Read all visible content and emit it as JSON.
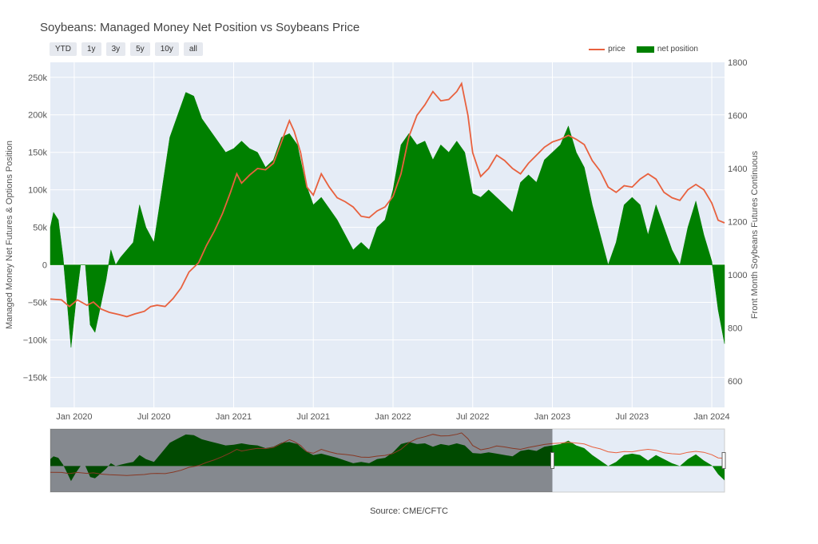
{
  "chart_data": {
    "type": "area+line",
    "title": "Soybeans: Managed Money Net Position vs Soybeans Price",
    "source": "Source: CME/CFTC",
    "range_buttons": [
      "YTD",
      "1y",
      "3y",
      "5y",
      "10y",
      "all"
    ],
    "y_left_label": "Managed Money Net Futures & Options Position",
    "y_right_label": "Front Month Soybeans Futures Continuous",
    "y_left_ticks": [
      "250k",
      "200k",
      "150k",
      "100k",
      "50k",
      "0",
      "−50k",
      "−100k",
      "−150k"
    ],
    "y_left_tick_values": [
      250000,
      200000,
      150000,
      100000,
      50000,
      0,
      -50000,
      -100000,
      -150000
    ],
    "y_left_range": [
      -190000,
      270000
    ],
    "y_right_ticks": [
      "1800",
      "1600",
      "1400",
      "1200",
      "1000",
      "800",
      "600"
    ],
    "y_right_tick_values": [
      1800,
      1600,
      1400,
      1200,
      1000,
      800,
      600
    ],
    "y_right_range": [
      500,
      1800
    ],
    "x_ticks": [
      "Jan 2020",
      "Jul 2020",
      "Jan 2021",
      "Jul 2021",
      "Jan 2022",
      "Jul 2022",
      "Jan 2023",
      "Jul 2023",
      "Jan 2024"
    ],
    "x_tick_values": [
      2020.0,
      2020.5,
      2021.0,
      2021.5,
      2022.0,
      2022.5,
      2023.0,
      2023.5,
      2024.0
    ],
    "x_range": [
      2019.85,
      2024.08
    ],
    "colors": {
      "price": "#e8613e",
      "net_position": "#008000",
      "plot_bg": "#e5ecf6"
    },
    "series": [
      {
        "name": "price",
        "type": "line",
        "axis": "right",
        "points": [
          [
            2019.85,
            908
          ],
          [
            2019.92,
            905
          ],
          [
            2019.97,
            880
          ],
          [
            2020.02,
            905
          ],
          [
            2020.08,
            885
          ],
          [
            2020.12,
            897
          ],
          [
            2020.17,
            870
          ],
          [
            2020.22,
            858
          ],
          [
            2020.28,
            850
          ],
          [
            2020.33,
            842
          ],
          [
            2020.38,
            852
          ],
          [
            2020.44,
            862
          ],
          [
            2020.48,
            880
          ],
          [
            2020.52,
            885
          ],
          [
            2020.57,
            880
          ],
          [
            2020.62,
            910
          ],
          [
            2020.67,
            950
          ],
          [
            2020.72,
            1010
          ],
          [
            2020.78,
            1045
          ],
          [
            2020.83,
            1110
          ],
          [
            2020.88,
            1165
          ],
          [
            2020.93,
            1230
          ],
          [
            2020.98,
            1310
          ],
          [
            2021.02,
            1380
          ],
          [
            2021.05,
            1345
          ],
          [
            2021.1,
            1375
          ],
          [
            2021.15,
            1400
          ],
          [
            2021.2,
            1395
          ],
          [
            2021.25,
            1420
          ],
          [
            2021.3,
            1500
          ],
          [
            2021.35,
            1580
          ],
          [
            2021.38,
            1540
          ],
          [
            2021.42,
            1460
          ],
          [
            2021.46,
            1330
          ],
          [
            2021.5,
            1300
          ],
          [
            2021.55,
            1380
          ],
          [
            2021.6,
            1330
          ],
          [
            2021.65,
            1290
          ],
          [
            2021.7,
            1275
          ],
          [
            2021.75,
            1255
          ],
          [
            2021.8,
            1220
          ],
          [
            2021.85,
            1215
          ],
          [
            2021.9,
            1240
          ],
          [
            2021.95,
            1255
          ],
          [
            2022.0,
            1295
          ],
          [
            2022.05,
            1380
          ],
          [
            2022.1,
            1520
          ],
          [
            2022.15,
            1600
          ],
          [
            2022.2,
            1640
          ],
          [
            2022.25,
            1690
          ],
          [
            2022.3,
            1655
          ],
          [
            2022.35,
            1660
          ],
          [
            2022.4,
            1690
          ],
          [
            2022.43,
            1720
          ],
          [
            2022.47,
            1600
          ],
          [
            2022.5,
            1460
          ],
          [
            2022.55,
            1370
          ],
          [
            2022.6,
            1400
          ],
          [
            2022.65,
            1450
          ],
          [
            2022.7,
            1430
          ],
          [
            2022.75,
            1400
          ],
          [
            2022.8,
            1380
          ],
          [
            2022.85,
            1420
          ],
          [
            2022.9,
            1450
          ],
          [
            2022.95,
            1480
          ],
          [
            2023.0,
            1500
          ],
          [
            2023.05,
            1510
          ],
          [
            2023.1,
            1525
          ],
          [
            2023.15,
            1510
          ],
          [
            2023.2,
            1490
          ],
          [
            2023.25,
            1430
          ],
          [
            2023.3,
            1390
          ],
          [
            2023.35,
            1330
          ],
          [
            2023.4,
            1310
          ],
          [
            2023.45,
            1335
          ],
          [
            2023.5,
            1330
          ],
          [
            2023.55,
            1360
          ],
          [
            2023.6,
            1380
          ],
          [
            2023.65,
            1360
          ],
          [
            2023.7,
            1310
          ],
          [
            2023.75,
            1290
          ],
          [
            2023.8,
            1280
          ],
          [
            2023.85,
            1320
          ],
          [
            2023.9,
            1340
          ],
          [
            2023.95,
            1320
          ],
          [
            2024.0,
            1270
          ],
          [
            2024.04,
            1205
          ],
          [
            2024.08,
            1195
          ]
        ]
      },
      {
        "name": "net position",
        "type": "area",
        "axis": "left",
        "points": [
          [
            2019.85,
            50000
          ],
          [
            2019.87,
            70000
          ],
          [
            2019.9,
            60000
          ],
          [
            2019.93,
            10000
          ],
          [
            2019.96,
            -60000
          ],
          [
            2019.98,
            -110000
          ],
          [
            2020.01,
            -50000
          ],
          [
            2020.04,
            0
          ],
          [
            2020.07,
            0
          ],
          [
            2020.1,
            -80000
          ],
          [
            2020.13,
            -90000
          ],
          [
            2020.16,
            -60000
          ],
          [
            2020.2,
            -20000
          ],
          [
            2020.23,
            20000
          ],
          [
            2020.26,
            0
          ],
          [
            2020.29,
            10000
          ],
          [
            2020.33,
            20000
          ],
          [
            2020.37,
            30000
          ],
          [
            2020.41,
            80000
          ],
          [
            2020.45,
            50000
          ],
          [
            2020.5,
            30000
          ],
          [
            2020.55,
            100000
          ],
          [
            2020.6,
            170000
          ],
          [
            2020.65,
            200000
          ],
          [
            2020.7,
            230000
          ],
          [
            2020.75,
            225000
          ],
          [
            2020.8,
            195000
          ],
          [
            2020.85,
            180000
          ],
          [
            2020.9,
            165000
          ],
          [
            2020.95,
            150000
          ],
          [
            2021.0,
            155000
          ],
          [
            2021.05,
            165000
          ],
          [
            2021.1,
            155000
          ],
          [
            2021.15,
            150000
          ],
          [
            2021.2,
            130000
          ],
          [
            2021.25,
            140000
          ],
          [
            2021.3,
            170000
          ],
          [
            2021.35,
            175000
          ],
          [
            2021.4,
            160000
          ],
          [
            2021.45,
            110000
          ],
          [
            2021.5,
            80000
          ],
          [
            2021.55,
            90000
          ],
          [
            2021.6,
            75000
          ],
          [
            2021.65,
            60000
          ],
          [
            2021.7,
            40000
          ],
          [
            2021.75,
            20000
          ],
          [
            2021.8,
            30000
          ],
          [
            2021.85,
            20000
          ],
          [
            2021.9,
            50000
          ],
          [
            2021.95,
            60000
          ],
          [
            2022.0,
            100000
          ],
          [
            2022.05,
            160000
          ],
          [
            2022.1,
            175000
          ],
          [
            2022.15,
            160000
          ],
          [
            2022.2,
            165000
          ],
          [
            2022.25,
            140000
          ],
          [
            2022.3,
            160000
          ],
          [
            2022.35,
            150000
          ],
          [
            2022.4,
            165000
          ],
          [
            2022.45,
            150000
          ],
          [
            2022.5,
            95000
          ],
          [
            2022.55,
            90000
          ],
          [
            2022.6,
            100000
          ],
          [
            2022.65,
            90000
          ],
          [
            2022.7,
            80000
          ],
          [
            2022.75,
            70000
          ],
          [
            2022.8,
            110000
          ],
          [
            2022.85,
            120000
          ],
          [
            2022.9,
            110000
          ],
          [
            2022.95,
            140000
          ],
          [
            2023.0,
            150000
          ],
          [
            2023.05,
            160000
          ],
          [
            2023.1,
            185000
          ],
          [
            2023.15,
            150000
          ],
          [
            2023.2,
            130000
          ],
          [
            2023.25,
            80000
          ],
          [
            2023.3,
            40000
          ],
          [
            2023.35,
            0
          ],
          [
            2023.4,
            30000
          ],
          [
            2023.45,
            80000
          ],
          [
            2023.5,
            90000
          ],
          [
            2023.55,
            80000
          ],
          [
            2023.6,
            40000
          ],
          [
            2023.65,
            80000
          ],
          [
            2023.7,
            50000
          ],
          [
            2023.75,
            20000
          ],
          [
            2023.8,
            0
          ],
          [
            2023.85,
            50000
          ],
          [
            2023.9,
            85000
          ],
          [
            2023.95,
            40000
          ],
          [
            2024.0,
            5000
          ],
          [
            2024.04,
            -60000
          ],
          [
            2024.08,
            -105000
          ]
        ]
      }
    ],
    "legend": {
      "placement": "top-right",
      "entries": [
        "price",
        "net position"
      ]
    },
    "grid": true,
    "rangeslider": {
      "selected_from": 2023.0,
      "selected_to": 2024.08
    }
  }
}
